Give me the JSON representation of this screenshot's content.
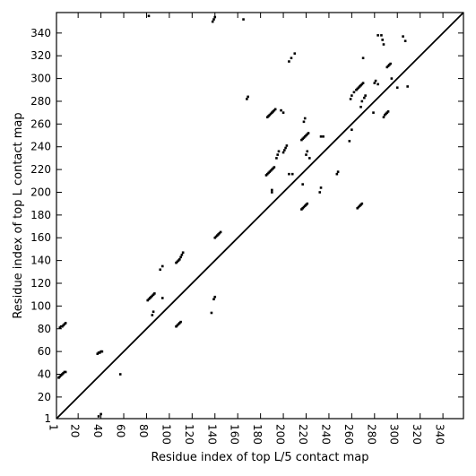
{
  "chart_data": {
    "type": "scatter",
    "title": "",
    "xlabel": "Residue index of top L/5 contact map",
    "ylabel": "Residue index of top L contact map",
    "xlim": [
      1,
      358
    ],
    "ylim": [
      1,
      358
    ],
    "x_ticks": [
      1,
      20,
      40,
      60,
      80,
      100,
      120,
      140,
      160,
      180,
      200,
      220,
      240,
      260,
      280,
      300,
      320,
      340
    ],
    "y_ticks": [
      1,
      20,
      40,
      60,
      80,
      100,
      120,
      140,
      160,
      180,
      200,
      220,
      240,
      260,
      280,
      300,
      320,
      340
    ],
    "grid": false,
    "diagonal_line": true,
    "point_color": "#000000",
    "series": [
      {
        "values_xy": [
          [
            3,
            37
          ],
          [
            4,
            38
          ],
          [
            5,
            39
          ],
          [
            6,
            40
          ],
          [
            7,
            41
          ],
          [
            8,
            42
          ],
          [
            9,
            42
          ],
          [
            4,
            81
          ],
          [
            5,
            82
          ],
          [
            6,
            82
          ],
          [
            7,
            83
          ],
          [
            8,
            84
          ],
          [
            9,
            85
          ],
          [
            38,
            3
          ],
          [
            40,
            5
          ],
          [
            37,
            58
          ],
          [
            38,
            59
          ],
          [
            39,
            59
          ],
          [
            40,
            60
          ],
          [
            41,
            60
          ],
          [
            57,
            40
          ],
          [
            81,
            105
          ],
          [
            82,
            106
          ],
          [
            83,
            107
          ],
          [
            84,
            108
          ],
          [
            85,
            109
          ],
          [
            86,
            110
          ],
          [
            87,
            111
          ],
          [
            85,
            92
          ],
          [
            86,
            95
          ],
          [
            94,
            107
          ],
          [
            92,
            132
          ],
          [
            94,
            135
          ],
          [
            106,
            82
          ],
          [
            107,
            83
          ],
          [
            108,
            84
          ],
          [
            109,
            85
          ],
          [
            110,
            86
          ],
          [
            106,
            138
          ],
          [
            107,
            139
          ],
          [
            108,
            140
          ],
          [
            109,
            141
          ],
          [
            110,
            143
          ],
          [
            111,
            145
          ],
          [
            112,
            147
          ],
          [
            140,
            160
          ],
          [
            141,
            161
          ],
          [
            142,
            162
          ],
          [
            143,
            163
          ],
          [
            144,
            164
          ],
          [
            145,
            165
          ],
          [
            137,
            94
          ],
          [
            139,
            106
          ],
          [
            140,
            108
          ],
          [
            138,
            350
          ],
          [
            139,
            352
          ],
          [
            140,
            354
          ],
          [
            165,
            352
          ],
          [
            82,
            355
          ],
          [
            168,
            282
          ],
          [
            169,
            284
          ],
          [
            185,
            215
          ],
          [
            186,
            216
          ],
          [
            187,
            217
          ],
          [
            188,
            218
          ],
          [
            189,
            219
          ],
          [
            190,
            220
          ],
          [
            191,
            221
          ],
          [
            192,
            222
          ],
          [
            186,
            266
          ],
          [
            187,
            267
          ],
          [
            188,
            268
          ],
          [
            189,
            269
          ],
          [
            190,
            270
          ],
          [
            191,
            271
          ],
          [
            192,
            272
          ],
          [
            193,
            273
          ],
          [
            190,
            200
          ],
          [
            190,
            202
          ],
          [
            194,
            230
          ],
          [
            195,
            233
          ],
          [
            196,
            236
          ],
          [
            198,
            272
          ],
          [
            200,
            270
          ],
          [
            200,
            235
          ],
          [
            201,
            237
          ],
          [
            202,
            239
          ],
          [
            203,
            241
          ],
          [
            205,
            315
          ],
          [
            207,
            318
          ],
          [
            210,
            322
          ],
          [
            205,
            216
          ],
          [
            208,
            216
          ],
          [
            216,
            185
          ],
          [
            217,
            186
          ],
          [
            218,
            187
          ],
          [
            219,
            188
          ],
          [
            220,
            189
          ],
          [
            221,
            190
          ],
          [
            216,
            246
          ],
          [
            217,
            247
          ],
          [
            218,
            248
          ],
          [
            219,
            249
          ],
          [
            220,
            250
          ],
          [
            221,
            251
          ],
          [
            222,
            252
          ],
          [
            218,
            262
          ],
          [
            219,
            265
          ],
          [
            217,
            207
          ],
          [
            220,
            233
          ],
          [
            221,
            236
          ],
          [
            223,
            230
          ],
          [
            232,
            200
          ],
          [
            233,
            204
          ],
          [
            233,
            249
          ],
          [
            235,
            249
          ],
          [
            247,
            216
          ],
          [
            248,
            218
          ],
          [
            258,
            245
          ],
          [
            260,
            255
          ],
          [
            259,
            282
          ],
          [
            260,
            285
          ],
          [
            262,
            288
          ],
          [
            264,
            290
          ],
          [
            265,
            291
          ],
          [
            266,
            292
          ],
          [
            267,
            293
          ],
          [
            268,
            294
          ],
          [
            269,
            295
          ],
          [
            270,
            296
          ],
          [
            265,
            186
          ],
          [
            266,
            187
          ],
          [
            267,
            188
          ],
          [
            268,
            189
          ],
          [
            269,
            190
          ],
          [
            268,
            275
          ],
          [
            269,
            280
          ],
          [
            271,
            283
          ],
          [
            272,
            285
          ],
          [
            270,
            318
          ],
          [
            279,
            270
          ],
          [
            280,
            296
          ],
          [
            281,
            298
          ],
          [
            283,
            295
          ],
          [
            283,
            338
          ],
          [
            286,
            338
          ],
          [
            287,
            334
          ],
          [
            288,
            330
          ],
          [
            288,
            266
          ],
          [
            289,
            268
          ],
          [
            290,
            269
          ],
          [
            291,
            270
          ],
          [
            292,
            271
          ],
          [
            291,
            310
          ],
          [
            292,
            311
          ],
          [
            293,
            312
          ],
          [
            294,
            313
          ],
          [
            295,
            300
          ],
          [
            300,
            292
          ],
          [
            305,
            337
          ],
          [
            307,
            333
          ],
          [
            309,
            293
          ]
        ]
      }
    ]
  }
}
